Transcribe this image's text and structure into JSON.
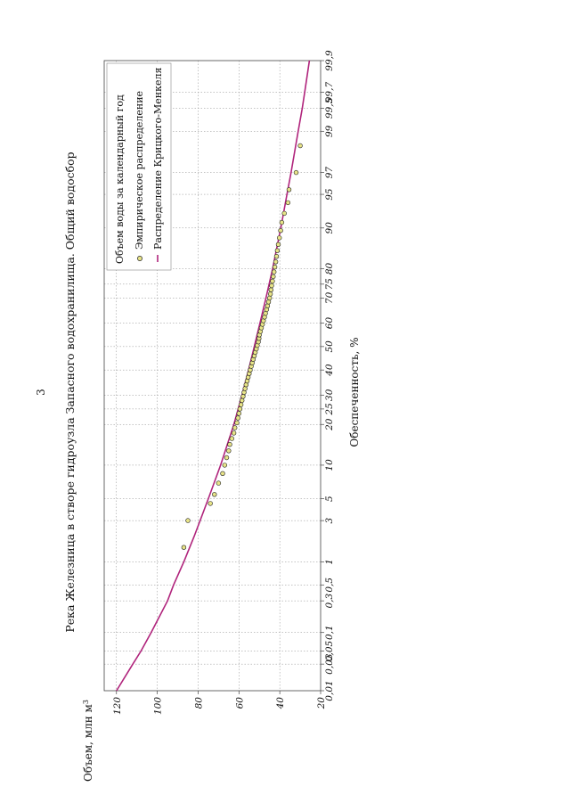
{
  "page": {
    "number": "3"
  },
  "chart_data": {
    "type": "scatter",
    "title": "Река Железница в створе гидроузла Запасного водохранилища. Общий водосбор",
    "xlabel": "Обеспеченность, %",
    "ylabel": "Объем, млн м",
    "ylabel_sup": "3",
    "x_scale": "probability",
    "xlim": [
      0.01,
      99.9
    ],
    "ylim": [
      20,
      126
    ],
    "x_ticks": [
      0.01,
      0.03,
      0.05,
      0.1,
      0.3,
      0.5,
      1,
      3,
      5,
      10,
      20,
      25,
      30,
      40,
      50,
      60,
      70,
      75,
      80,
      90,
      95,
      97,
      99,
      99.5,
      99.7,
      99.9
    ],
    "x_tick_labels": [
      "0,01",
      "0,03",
      "0,05",
      "0,1",
      "0,3",
      "0,5",
      "1",
      "3",
      "5",
      "10",
      "20",
      "25",
      "30",
      "40",
      "50",
      "60",
      "70",
      "75",
      "80",
      "90",
      "95",
      "97",
      "99",
      "99,5",
      "99,7",
      "99,9"
    ],
    "y_ticks": [
      20,
      40,
      60,
      80,
      100,
      120
    ],
    "grid": true,
    "legend_position": "top-right",
    "legend": [
      "Объем воды за календарный год",
      "Эмпирическое распределение",
      "Распределение Крицкого-Менкеля"
    ],
    "series": [
      {
        "name": "Эмпирическое распределение",
        "kind": "points",
        "color": "#e8e488",
        "x": [
          1.5,
          3.0,
          4.5,
          5.5,
          7.0,
          8.5,
          10.0,
          11.5,
          13.0,
          14.5,
          16.0,
          17.5,
          19.0,
          20.5,
          22.0,
          23.5,
          25.0,
          26.5,
          28.0,
          29.5,
          31.0,
          32.5,
          34.0,
          35.5,
          37.0,
          38.5,
          40.0,
          41.5,
          43.0,
          44.5,
          46.0,
          47.5,
          49.0,
          50.5,
          52.0,
          53.5,
          55.0,
          56.5,
          58.0,
          59.5,
          61.0,
          62.5,
          64.0,
          65.5,
          67.0,
          68.5,
          70.0,
          71.5,
          73.0,
          74.5,
          76.0,
          77.5,
          79.0,
          80.5,
          82.0,
          83.5,
          85.0,
          86.5,
          88.0,
          89.5,
          91.0,
          92.5,
          94.0,
          95.5,
          97.0,
          98.5
        ],
        "y": [
          87,
          85,
          74,
          72,
          70,
          68,
          67,
          66,
          65,
          64.5,
          63.5,
          62.5,
          62,
          61,
          60.5,
          60,
          59.5,
          59,
          58.5,
          58,
          57.5,
          57,
          56.5,
          56,
          55.5,
          55,
          54.5,
          54,
          53.5,
          53,
          52.5,
          52,
          51.5,
          51,
          50.5,
          50.2,
          50,
          49.5,
          49,
          48.5,
          48,
          47.5,
          47,
          46.5,
          46,
          45.5,
          45,
          44.6,
          44.3,
          44,
          43.6,
          43.2,
          42.8,
          42.4,
          42,
          41.6,
          41.2,
          40.7,
          40.2,
          39.6,
          39,
          37.8,
          36,
          35.5,
          32,
          30
        ]
      },
      {
        "name": "Распределение Крицкого-Менкеля",
        "kind": "line",
        "color": "#b0247c",
        "x": [
          0.01,
          0.03,
          0.05,
          0.1,
          0.3,
          0.5,
          1,
          2,
          3,
          5,
          10,
          20,
          30,
          40,
          50,
          60,
          70,
          80,
          90,
          95,
          97,
          99,
          99.5,
          99.7,
          99.9
        ],
        "y": [
          120,
          112,
          108,
          103,
          95,
          92,
          87,
          82,
          79,
          75,
          69,
          62.5,
          58.5,
          55.3,
          52.5,
          49.7,
          46.8,
          43.5,
          39.5,
          36.5,
          34.5,
          31,
          29,
          27.8,
          25.5
        ]
      }
    ]
  }
}
